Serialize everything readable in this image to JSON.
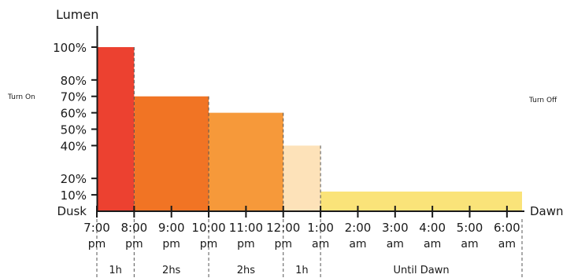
{
  "chart_data": {
    "type": "bar",
    "ylabel": "Lumen",
    "y_unit": "%",
    "y_ticks": [
      10,
      20,
      40,
      50,
      60,
      70,
      80,
      100
    ],
    "ylim": [
      0,
      100
    ],
    "y_start_label": "Dusk",
    "x_end_label": "Dawn",
    "left_note": "Turn On",
    "right_note": "Turn Off",
    "x_ticks": [
      {
        "top": "7:00",
        "bottom": "pm"
      },
      {
        "top": "8:00",
        "bottom": "pm"
      },
      {
        "top": "9:00",
        "bottom": "pm"
      },
      {
        "top": "10:00",
        "bottom": "pm"
      },
      {
        "top": "11:00",
        "bottom": "pm"
      },
      {
        "top": "12:00",
        "bottom": "pm"
      },
      {
        "top": "1:00",
        "bottom": "am"
      },
      {
        "top": "2:00",
        "bottom": "am"
      },
      {
        "top": "3:00",
        "bottom": "am"
      },
      {
        "top": "4:00",
        "bottom": "am"
      },
      {
        "top": "5:00",
        "bottom": "am"
      },
      {
        "top": "6:00",
        "bottom": "am"
      }
    ],
    "bars": [
      {
        "start": "7:00 pm",
        "end": "8:00 pm",
        "value": 100,
        "duration_label": "1h",
        "color": "#ec4130"
      },
      {
        "start": "8:00 pm",
        "end": "10:00 pm",
        "value": 70,
        "duration_label": "2hs",
        "color": "#f17424"
      },
      {
        "start": "10:00 pm",
        "end": "12:00 pm",
        "value": 60,
        "duration_label": "2hs",
        "color": "#f6993a"
      },
      {
        "start": "12:00 pm",
        "end": "1:00 am",
        "value": 40,
        "duration_label": "1h",
        "color": "#fde2b9"
      },
      {
        "start": "1:00 am",
        "end": "Dawn",
        "value": 12,
        "duration_label": "Until Dawn",
        "color": "#fae379"
      }
    ]
  }
}
